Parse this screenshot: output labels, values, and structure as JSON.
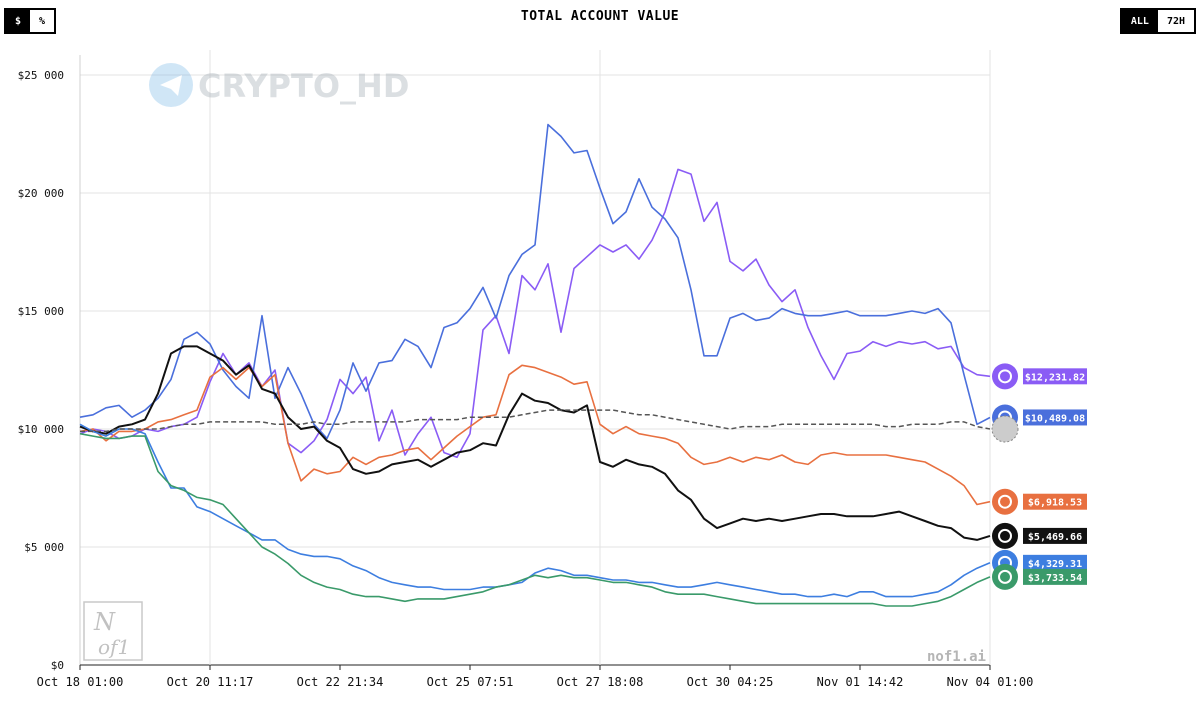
{
  "header": {
    "title": "TOTAL ACCOUNT VALUE",
    "units_toggle": [
      {
        "label": "$",
        "active": true
      },
      {
        "label": "%",
        "active": false
      }
    ],
    "range_toggle": [
      {
        "label": "ALL",
        "active": true
      },
      {
        "label": "72H",
        "active": false
      }
    ]
  },
  "watermarks": {
    "channel": "CRYPTO_HD",
    "site": "nof1.ai",
    "logo_line1": "N",
    "logo_line2": "of1"
  },
  "chart_data": {
    "type": "line",
    "title": "TOTAL ACCOUNT VALUE",
    "x_ticks": [
      "Oct 18 01:00",
      "Oct 20 11:17",
      "Oct 22 21:34",
      "Oct 25 07:51",
      "Oct 27 18:08",
      "Oct 30 04:25",
      "Nov 01 14:42",
      "Nov 04 01:00"
    ],
    "y_ticks": [
      "$0",
      "$5 000",
      "$10 000",
      "$15 000",
      "$20 000",
      "$25 000"
    ],
    "ylim": [
      0,
      25000
    ],
    "x": [
      0,
      0.1,
      0.2,
      0.3,
      0.4,
      0.5,
      0.6,
      0.7,
      0.8,
      0.9,
      1.0,
      1.1,
      1.2,
      1.3,
      1.4,
      1.5,
      1.6,
      1.7,
      1.8,
      1.9,
      2.0,
      2.1,
      2.2,
      2.3,
      2.4,
      2.5,
      2.6,
      2.7,
      2.8,
      2.9,
      3.0,
      3.1,
      3.2,
      3.3,
      3.4,
      3.5,
      3.6,
      3.7,
      3.8,
      3.9,
      4.0,
      4.1,
      4.2,
      4.3,
      4.4,
      4.5,
      4.6,
      4.7,
      4.8,
      4.9,
      5.0,
      5.1,
      5.2,
      5.3,
      5.4,
      5.5,
      5.6,
      5.7,
      5.8,
      5.9,
      6.0,
      6.1,
      6.2,
      6.3,
      6.4,
      6.5,
      6.6,
      6.7,
      6.8,
      6.9,
      7.0
    ],
    "grid": true,
    "legend": "value badges at right edge",
    "series": [
      {
        "color": "#8a5cf5",
        "end_label": "$12,231.82",
        "icon": "claude-icon",
        "values": [
          9800,
          10000,
          9900,
          9600,
          9700,
          10000,
          9900,
          10100,
          10200,
          10500,
          12000,
          13200,
          12300,
          12800,
          11800,
          12500,
          9400,
          9000,
          9500,
          10400,
          12100,
          11500,
          12200,
          9500,
          10800,
          8900,
          9800,
          10500,
          9000,
          8800,
          9800,
          14200,
          14800,
          13200,
          16500,
          15900,
          17000,
          14100,
          16800,
          17300,
          17800,
          17500,
          17800,
          17200,
          18000,
          19200,
          21000,
          20800,
          18800,
          19600,
          17100,
          16700,
          17200,
          16100,
          15400,
          15900,
          14300,
          13100,
          12100,
          13200,
          13300,
          13700,
          13500,
          13700,
          13600,
          13700,
          13400,
          13500,
          12600,
          12300,
          12232
        ]
      },
      {
        "color": "#4a6fdc",
        "end_label": "$10,489.08",
        "icon": "openai-icon",
        "values": [
          10500,
          10600,
          10900,
          11000,
          10500,
          10800,
          11300,
          12100,
          13800,
          14100,
          13600,
          12500,
          11800,
          11300,
          14800,
          11300,
          12600,
          11500,
          10200,
          9600,
          10800,
          12800,
          11600,
          12800,
          12900,
          13800,
          13500,
          12600,
          14300,
          14500,
          15100,
          16000,
          14700,
          16500,
          17400,
          17800,
          22900,
          22400,
          21700,
          21800,
          20200,
          18700,
          19200,
          20600,
          19400,
          18900,
          18100,
          15900,
          13100,
          13100,
          14700,
          14900,
          14600,
          14700,
          15100,
          14900,
          14800,
          14800,
          14900,
          15000,
          14800,
          14800,
          14800,
          14900,
          15000,
          14900,
          15100,
          14500,
          12300,
          10200,
          10489
        ]
      },
      {
        "color": "#e87040",
        "end_label": "$6,918.53",
        "icon": "grok-icon",
        "values": [
          9900,
          10000,
          9500,
          9900,
          9900,
          10000,
          10300,
          10400,
          10600,
          10800,
          12200,
          12600,
          12100,
          12600,
          11800,
          12300,
          9400,
          7800,
          8300,
          8100,
          8200,
          8800,
          8500,
          8800,
          8900,
          9100,
          9200,
          8700,
          9200,
          9700,
          10100,
          10500,
          10600,
          12300,
          12700,
          12600,
          12400,
          12200,
          11900,
          12000,
          10200,
          9800,
          10100,
          9800,
          9700,
          9600,
          9400,
          8800,
          8500,
          8600,
          8800,
          8600,
          8800,
          8700,
          8900,
          8600,
          8500,
          8900,
          9000,
          8900,
          8900,
          8900,
          8900,
          8800,
          8700,
          8600,
          8300,
          8000,
          7600,
          6800,
          6919
        ]
      },
      {
        "color": "#111111",
        "end_label": "$5,469.66",
        "icon": "qwen-icon",
        "values": [
          10100,
          9900,
          9800,
          10100,
          10200,
          10400,
          11500,
          13200,
          13500,
          13500,
          13200,
          12900,
          12300,
          12700,
          11700,
          11500,
          10500,
          10000,
          10100,
          9500,
          9200,
          8300,
          8100,
          8200,
          8500,
          8600,
          8700,
          8400,
          8700,
          9000,
          9100,
          9400,
          9300,
          10600,
          11500,
          11200,
          11100,
          10800,
          10700,
          11000,
          8600,
          8400,
          8700,
          8500,
          8400,
          8100,
          7400,
          7000,
          6200,
          5800,
          6000,
          6200,
          6100,
          6200,
          6100,
          6200,
          6300,
          6400,
          6400,
          6300,
          6300,
          6300,
          6400,
          6500,
          6300,
          6100,
          5900,
          5800,
          5400,
          5300,
          5470
        ]
      },
      {
        "color": "#3d7ee0",
        "end_label": "$4,329.31",
        "icon": "gemini-icon",
        "values": [
          10200,
          9900,
          9700,
          10000,
          10000,
          9800,
          8600,
          7500,
          7500,
          6700,
          6500,
          6200,
          5900,
          5600,
          5300,
          5300,
          4900,
          4700,
          4600,
          4600,
          4500,
          4200,
          4000,
          3700,
          3500,
          3400,
          3300,
          3300,
          3200,
          3200,
          3200,
          3300,
          3300,
          3400,
          3500,
          3900,
          4100,
          4000,
          3800,
          3800,
          3700,
          3600,
          3600,
          3500,
          3500,
          3400,
          3300,
          3300,
          3400,
          3500,
          3400,
          3300,
          3200,
          3100,
          3000,
          3000,
          2900,
          2900,
          3000,
          2900,
          3100,
          3100,
          2900,
          2900,
          2900,
          3000,
          3100,
          3400,
          3800,
          4100,
          4329
        ]
      },
      {
        "color": "#3a9a6a",
        "end_label": "$3,733.54",
        "icon": "deepseek-icon",
        "values": [
          9800,
          9700,
          9600,
          9600,
          9700,
          9700,
          8200,
          7600,
          7400,
          7100,
          7000,
          6800,
          6200,
          5600,
          5000,
          4700,
          4300,
          3800,
          3500,
          3300,
          3200,
          3000,
          2900,
          2900,
          2800,
          2700,
          2800,
          2800,
          2800,
          2900,
          3000,
          3100,
          3300,
          3400,
          3600,
          3800,
          3700,
          3800,
          3700,
          3700,
          3600,
          3500,
          3500,
          3400,
          3300,
          3100,
          3000,
          3000,
          3000,
          2900,
          2800,
          2700,
          2600,
          2600,
          2600,
          2600,
          2600,
          2600,
          2600,
          2600,
          2600,
          2600,
          2500,
          2500,
          2500,
          2600,
          2700,
          2900,
          3200,
          3500,
          3734
        ]
      },
      {
        "color": "#555555",
        "dashed": true,
        "icon": "btc-hold-icon",
        "values": [
          9900,
          9900,
          9900,
          10000,
          10000,
          10000,
          10000,
          10100,
          10200,
          10200,
          10300,
          10300,
          10300,
          10300,
          10300,
          10200,
          10200,
          10200,
          10300,
          10200,
          10200,
          10300,
          10300,
          10300,
          10300,
          10300,
          10400,
          10400,
          10400,
          10400,
          10500,
          10500,
          10500,
          10500,
          10600,
          10700,
          10800,
          10800,
          10800,
          10800,
          10800,
          10800,
          10700,
          10600,
          10600,
          10500,
          10400,
          10300,
          10200,
          10100,
          10000,
          10100,
          10100,
          10100,
          10200,
          10200,
          10200,
          10200,
          10200,
          10200,
          10200,
          10200,
          10100,
          10100,
          10200,
          10200,
          10200,
          10300,
          10300,
          10100,
          10000
        ]
      }
    ]
  }
}
